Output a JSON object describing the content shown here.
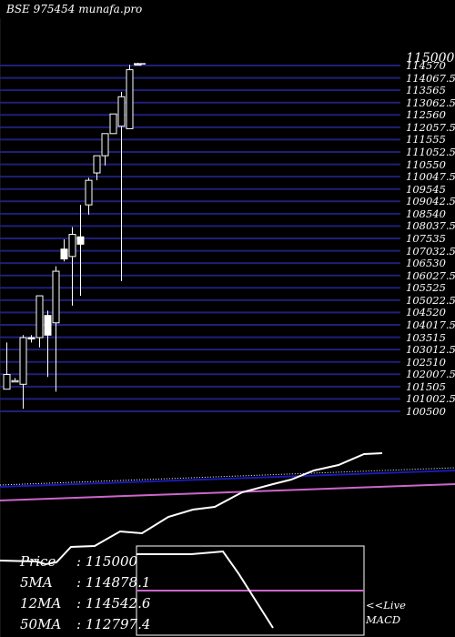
{
  "title": "BSE 975454  munafa.pro",
  "colors": {
    "background": "#000000",
    "grid_line": "#1f1f7a",
    "candle": "#ffffff",
    "volume_ma_blue": "#1a1ab3",
    "volume_ma_dotted": "#ffffff",
    "volume_ma_pink": "#cc66cc",
    "macd_line": "#ffffff",
    "macd_signal": "#cc66cc"
  },
  "chart_data": {
    "type": "candlestick",
    "price_axis": {
      "min": 100500,
      "max": 114570,
      "top_label": "115000",
      "tick_labels": [
        "114570",
        "114067.5",
        "113565",
        "113062.5",
        "112560",
        "112057.5",
        "111555",
        "111052.5",
        "110550",
        "110047.5",
        "109545",
        "109042.5",
        "108540",
        "108037.5",
        "107535",
        "107032.5",
        "106530",
        "106027.5",
        "105525",
        "105022.5",
        "104520",
        "104017.5",
        "103515",
        "103012.5",
        "102510",
        "102007.5",
        "101505",
        "101002.5",
        "100500"
      ]
    },
    "candles": [
      {
        "open": 101400,
        "close": 102000,
        "high": 103300,
        "low": 101400
      },
      {
        "open": 101750,
        "close": 101750,
        "high": 101850,
        "low": 101700
      },
      {
        "open": 101600,
        "close": 103500,
        "high": 103600,
        "low": 100600
      },
      {
        "open": 103500,
        "close": 103450,
        "high": 103600,
        "low": 103300
      },
      {
        "open": 103500,
        "close": 105200,
        "high": 105200,
        "low": 103100
      },
      {
        "open": 104400,
        "close": 103600,
        "high": 104600,
        "low": 101900
      },
      {
        "open": 104100,
        "close": 106200,
        "high": 106400,
        "low": 101300
      },
      {
        "open": 107100,
        "close": 106700,
        "high": 107500,
        "low": 106600
      },
      {
        "open": 106800,
        "close": 107700,
        "high": 108000,
        "low": 104800
      },
      {
        "open": 107600,
        "close": 107300,
        "high": 108900,
        "low": 105200
      },
      {
        "open": 108900,
        "close": 109900,
        "high": 110000,
        "low": 108500
      },
      {
        "open": 110200,
        "close": 110900,
        "high": 110900,
        "low": 109900
      },
      {
        "open": 110900,
        "close": 111800,
        "high": 111800,
        "low": 110500
      },
      {
        "open": 111800,
        "close": 112600,
        "high": 112600,
        "low": 111800
      },
      {
        "open": 112100,
        "close": 113300,
        "high": 113500,
        "low": 105800
      },
      {
        "open": 112000,
        "close": 114400,
        "high": 114600,
        "low": 112000
      },
      {
        "open": 114640,
        "close": 114640,
        "high": 114680,
        "low": 114600
      }
    ],
    "macd": {
      "line": [
        2,
        3,
        2,
        6,
        6,
        7,
        6,
        10,
        12,
        12,
        14,
        16,
        18,
        21,
        23,
        26,
        28,
        28
      ],
      "signal": [
        4,
        4,
        4,
        4,
        4,
        4,
        4,
        4,
        4,
        4,
        4,
        4,
        4,
        4,
        4,
        4,
        4,
        4
      ]
    }
  },
  "stats": [
    {
      "label": "Price",
      "value": ": 115000"
    },
    {
      "label": "5MA",
      "value": ": 114878.1"
    },
    {
      "label": "12MA",
      "value": ": 114542.6"
    },
    {
      "label": "50MA",
      "value": ": 112797.4"
    }
  ],
  "macd_label": {
    "line1": "<<Live",
    "line2": "MACD"
  }
}
